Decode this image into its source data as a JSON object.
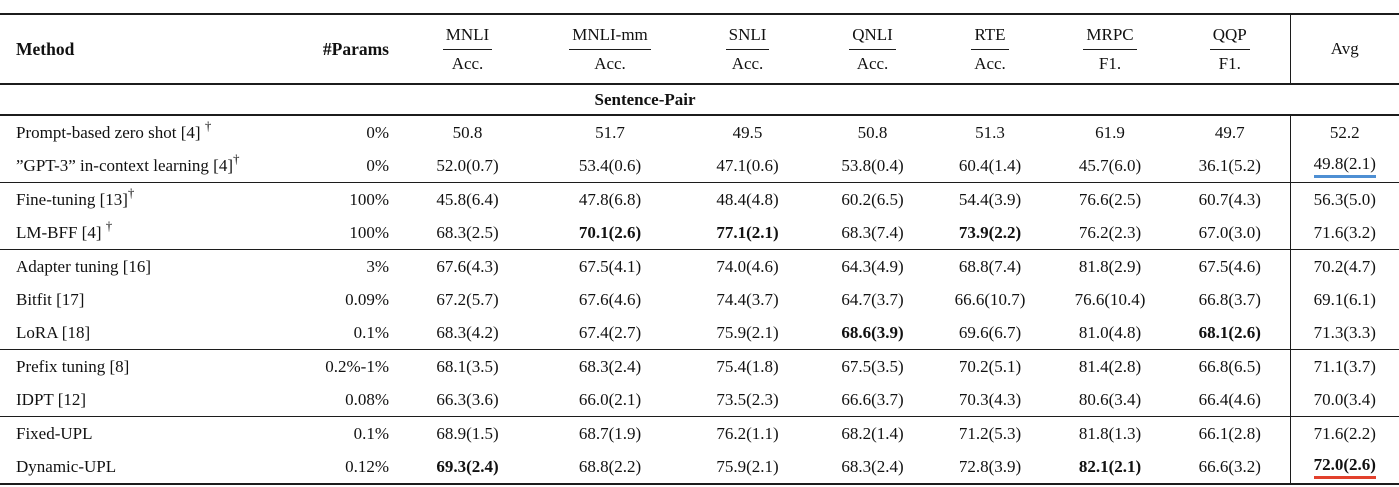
{
  "colors": {
    "rule": "#1c1c1c",
    "text": "#111111",
    "blue_underline": "#4e8fd3",
    "red_underline": "#e2402c"
  },
  "table": {
    "section_label": "Sentence-Pair",
    "dagger_symbol": "†",
    "columns": [
      {
        "key": "method",
        "label": "Method"
      },
      {
        "key": "params",
        "label": "#Params"
      },
      {
        "key": "mnli",
        "label": "MNLI",
        "sub": "Acc."
      },
      {
        "key": "mnli-mm",
        "label": "MNLI-mm",
        "sub": "Acc."
      },
      {
        "key": "snli",
        "label": "SNLI",
        "sub": "Acc."
      },
      {
        "key": "qnli",
        "label": "QNLI",
        "sub": "Acc."
      },
      {
        "key": "rte",
        "label": "RTE",
        "sub": "Acc."
      },
      {
        "key": "mrpc",
        "label": "MRPC",
        "sub": "F1."
      },
      {
        "key": "qqp",
        "label": "QQP",
        "sub": "F1."
      },
      {
        "key": "avg",
        "label": "Avg"
      }
    ],
    "groups": [
      [
        {
          "name": "Prompt-based zero shot [4] ",
          "dagger": "†",
          "params": "0%",
          "values": [
            {
              "t": "50.8"
            },
            {
              "t": "51.7"
            },
            {
              "t": "49.5"
            },
            {
              "t": "50.8"
            },
            {
              "t": "51.3"
            },
            {
              "t": "61.9"
            },
            {
              "t": "49.7"
            },
            {
              "t": "52.2"
            }
          ]
        },
        {
          "name": "”GPT-3” in-context learning [4]",
          "dagger": "†",
          "params": "0%",
          "values": [
            {
              "t": "52.0(0.7)"
            },
            {
              "t": "53.4(0.6)"
            },
            {
              "t": "47.1(0.6)"
            },
            {
              "t": "53.8(0.4)"
            },
            {
              "t": "60.4(1.4)"
            },
            {
              "t": "45.7(6.0)"
            },
            {
              "t": "36.1(5.2)"
            },
            {
              "t": "49.8(2.1)",
              "u": "blue"
            }
          ]
        }
      ],
      [
        {
          "name": "Fine-tuning [13]",
          "dagger": "†",
          "params": "100%",
          "values": [
            {
              "t": "45.8(6.4)"
            },
            {
              "t": "47.8(6.8)"
            },
            {
              "t": "48.4(4.8)"
            },
            {
              "t": "60.2(6.5)"
            },
            {
              "t": "54.4(3.9)"
            },
            {
              "t": "76.6(2.5)"
            },
            {
              "t": "60.7(4.3)"
            },
            {
              "t": "56.3(5.0)"
            }
          ]
        },
        {
          "name": "LM-BFF [4] ",
          "dagger": "†",
          "params": "100%",
          "values": [
            {
              "t": "68.3(2.5)"
            },
            {
              "t": "70.1(2.6)",
              "b": true
            },
            {
              "t": "77.1(2.1)",
              "b": true
            },
            {
              "t": "68.3(7.4)"
            },
            {
              "t": "73.9(2.2)",
              "b": true
            },
            {
              "t": "76.2(2.3)"
            },
            {
              "t": "67.0(3.0)"
            },
            {
              "t": "71.6(3.2)"
            }
          ]
        }
      ],
      [
        {
          "name": "Adapter tuning [16]",
          "dagger": "",
          "params": "3%",
          "values": [
            {
              "t": "67.6(4.3)"
            },
            {
              "t": "67.5(4.1)"
            },
            {
              "t": "74.0(4.6)"
            },
            {
              "t": "64.3(4.9)"
            },
            {
              "t": "68.8(7.4)"
            },
            {
              "t": "81.8(2.9)"
            },
            {
              "t": "67.5(4.6)"
            },
            {
              "t": "70.2(4.7)"
            }
          ]
        },
        {
          "name": "Bitfit [17]",
          "dagger": "",
          "params": "0.09%",
          "values": [
            {
              "t": "67.2(5.7)"
            },
            {
              "t": "67.6(4.6)"
            },
            {
              "t": "74.4(3.7)"
            },
            {
              "t": "64.7(3.7)"
            },
            {
              "t": "66.6(10.7)"
            },
            {
              "t": "76.6(10.4)"
            },
            {
              "t": "66.8(3.7)"
            },
            {
              "t": "69.1(6.1)"
            }
          ]
        },
        {
          "name": "LoRA [18]",
          "dagger": "",
          "params": "0.1%",
          "values": [
            {
              "t": "68.3(4.2)"
            },
            {
              "t": "67.4(2.7)"
            },
            {
              "t": "75.9(2.1)"
            },
            {
              "t": "68.6(3.9)",
              "b": true
            },
            {
              "t": "69.6(6.7)"
            },
            {
              "t": "81.0(4.8)"
            },
            {
              "t": "68.1(2.6)",
              "b": true
            },
            {
              "t": "71.3(3.3)"
            }
          ]
        }
      ],
      [
        {
          "name": "Prefix tuning [8]",
          "dagger": "",
          "params": "0.2%-1%",
          "values": [
            {
              "t": "68.1(3.5)"
            },
            {
              "t": "68.3(2.4)"
            },
            {
              "t": "75.4(1.8)"
            },
            {
              "t": "67.5(3.5)"
            },
            {
              "t": "70.2(5.1)"
            },
            {
              "t": "81.4(2.8)"
            },
            {
              "t": "66.8(6.5)"
            },
            {
              "t": "71.1(3.7)"
            }
          ]
        },
        {
          "name": "IDPT [12]",
          "dagger": "",
          "params": "0.08%",
          "values": [
            {
              "t": "66.3(3.6)"
            },
            {
              "t": "66.0(2.1)"
            },
            {
              "t": "73.5(2.3)"
            },
            {
              "t": "66.6(3.7)"
            },
            {
              "t": "70.3(4.3)"
            },
            {
              "t": "80.6(3.4)"
            },
            {
              "t": "66.4(4.6)"
            },
            {
              "t": "70.0(3.4)"
            }
          ]
        }
      ],
      [
        {
          "name": "Fixed-UPL",
          "dagger": "",
          "params": "0.1%",
          "values": [
            {
              "t": "68.9(1.5)"
            },
            {
              "t": "68.7(1.9)"
            },
            {
              "t": "76.2(1.1)"
            },
            {
              "t": "68.2(1.4)"
            },
            {
              "t": "71.2(5.3)"
            },
            {
              "t": "81.8(1.3)"
            },
            {
              "t": "66.1(2.8)"
            },
            {
              "t": "71.6(2.2)"
            }
          ]
        },
        {
          "name": "Dynamic-UPL",
          "dagger": "",
          "params": "0.12%",
          "values": [
            {
              "t": "69.3(2.4)",
              "b": true
            },
            {
              "t": "68.8(2.2)"
            },
            {
              "t": "75.9(2.1)"
            },
            {
              "t": "68.3(2.4)"
            },
            {
              "t": "72.8(3.9)"
            },
            {
              "t": "82.1(2.1)",
              "b": true
            },
            {
              "t": "66.6(3.2)"
            },
            {
              "t": "72.0(2.6)",
              "b": true,
              "u": "red"
            }
          ]
        }
      ]
    ]
  }
}
